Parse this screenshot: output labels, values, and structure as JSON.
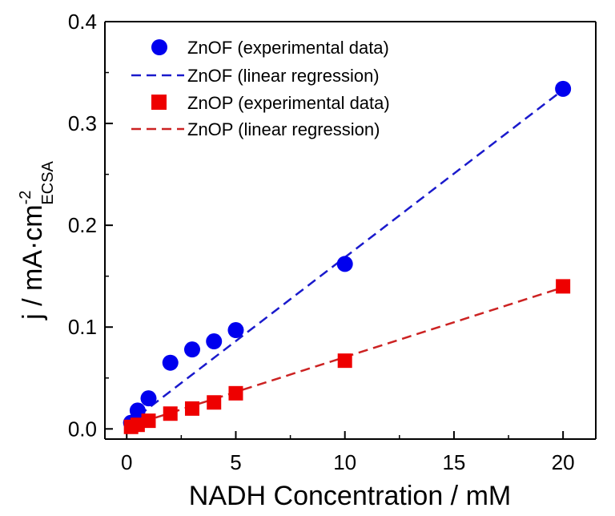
{
  "chart_data": {
    "type": "scatter",
    "title": "",
    "xlabel": "NADH Concentration / mM",
    "ylabel": {
      "main": "j / mA·cm",
      "superscript": "-2",
      "subscript": "ECSA"
    },
    "xlim": [
      -1,
      21.5
    ],
    "ylim": [
      -0.01,
      0.4
    ],
    "xticks": [
      0,
      5,
      10,
      15,
      20
    ],
    "yticks": [
      0.0,
      0.1,
      0.2,
      0.3,
      0.4
    ],
    "xtick_labels": [
      "0",
      "5",
      "10",
      "15",
      "20"
    ],
    "ytick_labels": [
      "0.0",
      "0.1",
      "0.2",
      "0.3",
      "0.4"
    ],
    "grid": false,
    "legend_position": "top-left",
    "series": [
      {
        "name": "ZnOF (experimental data)",
        "kind": "scatter",
        "marker": "circle",
        "color": "#0000ee",
        "x": [
          0.2,
          0.5,
          1,
          2,
          3,
          4,
          5,
          10,
          20
        ],
        "y": [
          0.006,
          0.018,
          0.03,
          0.065,
          0.078,
          0.086,
          0.097,
          0.162,
          0.334
        ]
      },
      {
        "name": "ZnOF (linear regression)",
        "kind": "line",
        "dash": true,
        "color": "#1a1acc",
        "x": [
          0,
          20
        ],
        "y": [
          0.004,
          0.333
        ]
      },
      {
        "name": "ZnOP (experimental data)",
        "kind": "scatter",
        "marker": "square",
        "color": "#ee0000",
        "x": [
          0.2,
          0.5,
          1,
          2,
          3,
          4,
          5,
          10,
          20
        ],
        "y": [
          0.002,
          0.004,
          0.008,
          0.015,
          0.02,
          0.026,
          0.035,
          0.067,
          0.14
        ]
      },
      {
        "name": "ZnOP (linear regression)",
        "kind": "line",
        "dash": true,
        "color": "#cc2222",
        "x": [
          0,
          20
        ],
        "y": [
          0.002,
          0.139
        ]
      }
    ]
  }
}
